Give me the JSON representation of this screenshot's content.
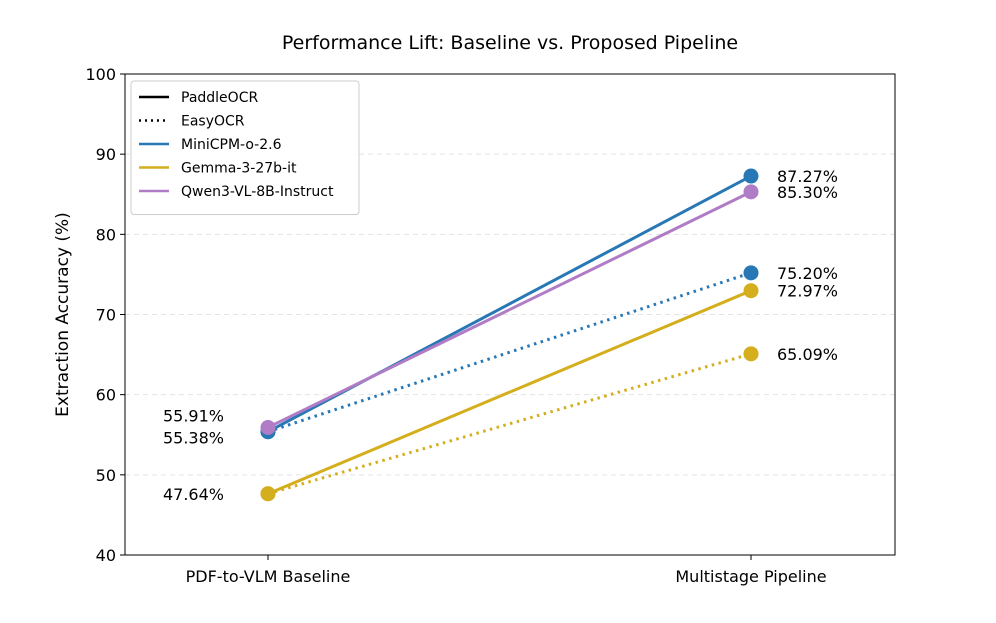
{
  "chart_data": {
    "type": "line",
    "title": "Performance Lift: Baseline vs. Proposed Pipeline",
    "xlabel": "",
    "ylabel": "Extraction Accuracy (%)",
    "categories": [
      "PDF-to-VLM Baseline",
      "Multistage Pipeline"
    ],
    "ylim": [
      40,
      100
    ],
    "yticks": [
      40,
      50,
      60,
      70,
      80,
      90,
      100
    ],
    "grid": "horizontal-dashed",
    "legend_position": "top-left",
    "legend": [
      {
        "label": "PaddleOCR",
        "style": "solid",
        "color": "#000000"
      },
      {
        "label": "EasyOCR",
        "style": "dotted",
        "color": "#000000"
      },
      {
        "label": "MiniCPM-o-2.6",
        "style": "solid",
        "color": "#2878b5"
      },
      {
        "label": "Gemma-3-27b-it",
        "style": "solid",
        "color": "#d4ae1c"
      },
      {
        "label": "Qwen3-VL-8B-Instruct",
        "style": "solid",
        "color": "#b07cc6"
      }
    ],
    "series": [
      {
        "model": "MiniCPM-o-2.6",
        "ocr": "PaddleOCR",
        "style": "solid",
        "color": "#2878b5",
        "values": [
          55.38,
          87.27
        ]
      },
      {
        "model": "MiniCPM-o-2.6",
        "ocr": "EasyOCR",
        "style": "dotted",
        "color": "#2878b5",
        "values": [
          55.38,
          75.2
        ]
      },
      {
        "model": "Qwen3-VL-8B-Instruct",
        "ocr": "PaddleOCR",
        "style": "solid",
        "color": "#b07cc6",
        "values": [
          55.91,
          85.3
        ]
      },
      {
        "model": "Gemma-3-27b-it",
        "ocr": "PaddleOCR",
        "style": "solid",
        "color": "#d4ae1c",
        "values": [
          47.64,
          72.97
        ]
      },
      {
        "model": "Gemma-3-27b-it",
        "ocr": "EasyOCR",
        "style": "dotted",
        "color": "#d4ae1c",
        "values": [
          47.64,
          65.09
        ]
      }
    ],
    "annotations": [
      {
        "text": "55.91%",
        "category": 0,
        "value": 55.91,
        "side": "left"
      },
      {
        "text": "55.38%",
        "category": 0,
        "value": 55.38,
        "side": "left"
      },
      {
        "text": "47.64%",
        "category": 0,
        "value": 47.64,
        "side": "left"
      },
      {
        "text": "87.27%",
        "category": 1,
        "value": 87.27,
        "side": "right"
      },
      {
        "text": "85.30%",
        "category": 1,
        "value": 85.3,
        "side": "right"
      },
      {
        "text": "75.20%",
        "category": 1,
        "value": 75.2,
        "side": "right"
      },
      {
        "text": "72.97%",
        "category": 1,
        "value": 72.97,
        "side": "right"
      },
      {
        "text": "65.09%",
        "category": 1,
        "value": 65.09,
        "side": "right"
      }
    ]
  }
}
